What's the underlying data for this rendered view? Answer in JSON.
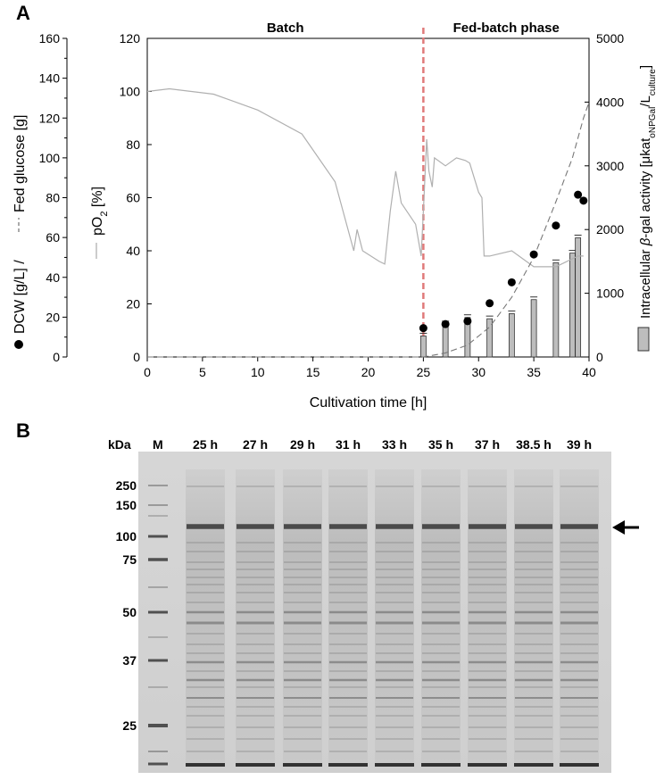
{
  "panel_a": {
    "letter": "A",
    "chart_data": {
      "type": "line",
      "xlabel": "Cultivation time [h]",
      "xlim": [
        0,
        40
      ],
      "x_ticks": [
        0,
        5,
        10,
        15,
        20,
        25,
        30,
        35,
        40
      ],
      "left_axis": {
        "label_parts": [
          "DCW [g/L]  /",
          "Fed glucose [g]"
        ],
        "ylim": [
          0,
          160
        ],
        "ticks": [
          0,
          20,
          40,
          60,
          80,
          100,
          120,
          140,
          160
        ]
      },
      "inner_axis": {
        "label": "pO2 [%]",
        "ylim": [
          0,
          120
        ],
        "ticks": [
          0,
          20,
          40,
          60,
          80,
          100,
          120
        ]
      },
      "right_axis": {
        "label": "Intracellular β-gal activity [μkatoNPGal/Lculture]",
        "label_main": "Intracellular ",
        "label_beta": "β",
        "label_rest": "-gal activity [μkat",
        "label_sub1": "oNPGal",
        "label_mid": "/L",
        "label_sub2": "culture",
        "label_end": "]",
        "ylim": [
          0,
          5000
        ],
        "ticks": [
          0,
          1000,
          2000,
          3000,
          4000,
          5000
        ]
      },
      "phase_labels": [
        "Batch",
        "Fed-batch phase"
      ],
      "phase_boundary_x": 25,
      "series": [
        {
          "name": "DCW",
          "axis": "left",
          "marker": "circle",
          "x": [
            25,
            27,
            29,
            31,
            33,
            35,
            37,
            39,
            39.5
          ],
          "y": [
            14.5,
            16.5,
            18,
            27,
            37.5,
            51.5,
            66,
            81.5,
            78.5
          ]
        },
        {
          "name": "Fed glucose",
          "axis": "left",
          "style": "dashed",
          "x": [
            25,
            27,
            29,
            31,
            33,
            35,
            37,
            38.5,
            39.5,
            40
          ],
          "y": [
            0,
            2,
            6,
            15,
            30,
            50,
            78,
            100,
            120,
            128
          ]
        },
        {
          "name": "pO2",
          "axis": "inner",
          "style": "line",
          "x": [
            0,
            2,
            6,
            10,
            14,
            17,
            18.7,
            19,
            19.5,
            21,
            21.5,
            22,
            22.5,
            23,
            24.3,
            24.8,
            25,
            25.3,
            25.5,
            25.8,
            26,
            27,
            28,
            28.8,
            29.2,
            30,
            30.3,
            30.5,
            31,
            33,
            35,
            37,
            38.5,
            39,
            39.5
          ],
          "y": [
            100,
            101,
            99,
            93,
            84,
            66,
            40,
            48,
            40,
            36,
            35,
            55,
            70,
            58,
            50,
            38,
            55,
            82,
            70,
            64,
            75,
            72,
            75,
            74,
            73,
            62,
            60,
            38,
            38,
            40,
            34,
            34,
            37,
            38,
            38
          ]
        },
        {
          "name": "Intracellular β-gal activity",
          "axis": "right",
          "type": "bar",
          "x": [
            25,
            27,
            29,
            31,
            33,
            35,
            37,
            38.5,
            39
          ],
          "y": [
            330,
            520,
            620,
            600,
            680,
            900,
            1480,
            1630,
            1870
          ]
        }
      ]
    }
  },
  "panel_b": {
    "letter": "B",
    "kda_label": "kDa",
    "marker_lane_label": "M",
    "lane_labels": [
      "25 h",
      "27 h",
      "29 h",
      "31 h",
      "33 h",
      "35 h",
      "37 h",
      "38.5 h",
      "39 h"
    ],
    "mw_labels": [
      "250",
      "150",
      "100",
      "75",
      "50",
      "37",
      "25"
    ],
    "arrow_icon": "left-arrow-icon"
  }
}
